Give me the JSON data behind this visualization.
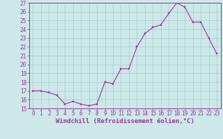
{
  "x": [
    0,
    1,
    2,
    3,
    4,
    5,
    6,
    7,
    8,
    9,
    10,
    11,
    12,
    13,
    14,
    15,
    16,
    17,
    18,
    19,
    20,
    21,
    22,
    23
  ],
  "y": [
    17.0,
    17.0,
    16.8,
    16.5,
    15.5,
    15.8,
    15.5,
    15.3,
    15.5,
    18.0,
    17.8,
    19.5,
    19.5,
    22.0,
    23.5,
    24.2,
    24.5,
    25.8,
    27.0,
    26.5,
    24.8,
    24.8,
    23.0,
    21.2
  ],
  "line_color": "#993399",
  "marker_color": "#993399",
  "bg_color": "#cce8e8",
  "grid_color": "#aacccc",
  "axis_color": "#993399",
  "xlabel": "Windchill (Refroidissement éolien,°C)",
  "xlabel_fontsize": 6.5,
  "tick_fontsize": 5.5,
  "ylim": [
    15,
    27
  ],
  "xlim_min": -0.5,
  "xlim_max": 23.5,
  "yticks": [
    15,
    16,
    17,
    18,
    19,
    20,
    21,
    22,
    23,
    24,
    25,
    26,
    27
  ],
  "xticks": [
    0,
    1,
    2,
    3,
    4,
    5,
    6,
    7,
    8,
    9,
    10,
    11,
    12,
    13,
    14,
    15,
    16,
    17,
    18,
    19,
    20,
    21,
    22,
    23
  ]
}
